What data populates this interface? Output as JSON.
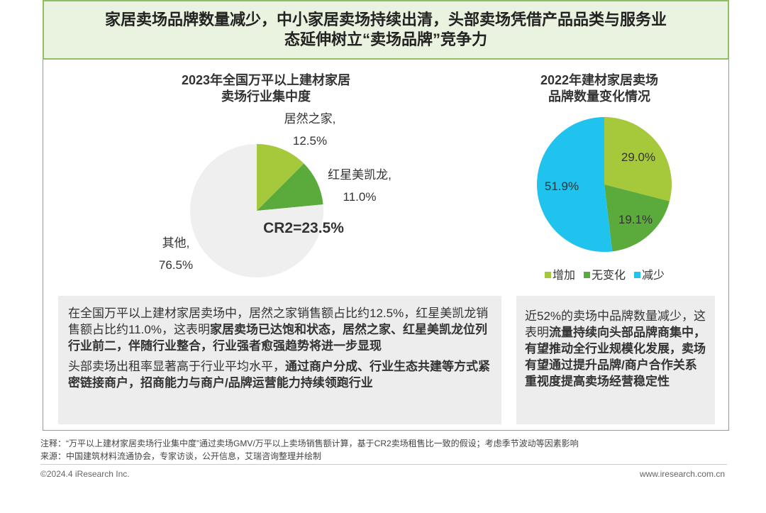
{
  "header": {
    "title": "家居卖场品牌数量减少，中小家居卖场持续出清，头部卖场凭借产品品类与服务业\n态延伸树立“卖场品牌”竞争力"
  },
  "chart_data": [
    {
      "type": "pie",
      "title": "2023年全国万平以上建材家居\n卖场行业集中度",
      "categories": [
        "居然之家,",
        "红星美凯龙,",
        "其他,"
      ],
      "values": [
        12.5,
        11.0,
        76.5
      ],
      "value_labels": [
        "12.5%",
        "11.0%",
        "76.5%"
      ],
      "colors": [
        "#a5c93a",
        "#5aaa3c",
        "#efefef"
      ],
      "label_position": "outside",
      "annotation": "CR2=23.5%"
    },
    {
      "type": "pie",
      "title": "2022年建材家居卖场\n品牌数量变化情况",
      "categories": [
        "增加",
        "无变化",
        "减少"
      ],
      "values": [
        29.0,
        19.1,
        51.9
      ],
      "value_labels": [
        "29.0%",
        "19.1%",
        "51.9%"
      ],
      "colors": [
        "#a5c93a",
        "#5aaa3c",
        "#1fc3ee"
      ],
      "label_position": "inside",
      "legend": "bottom"
    }
  ],
  "boxes": [
    {
      "paragraphs": [
        [
          {
            "text": "在全国万平以上建材家居卖场中，居然之家销售额占比约12.5%，红星美凯龙销售额占比约11.0%，这表明",
            "bold": false
          },
          {
            "text": "家居卖场已达饱和状态，居然之家、红星美凯龙位列行业前二，伴随行业整合，行业强者愈强趋势将进一步显现",
            "bold": true
          }
        ],
        [
          {
            "text": "头部卖场出租率显著高于行业平均水平，",
            "bold": false
          },
          {
            "text": "通过商户分成、行业生态共建等方式紧密链接商户，招商能力与商户/品牌运营能力持续领跑行业",
            "bold": true
          }
        ]
      ]
    },
    {
      "paragraphs": [
        [
          {
            "text": "近52%的卖场中品牌数量减少，这表明",
            "bold": false
          },
          {
            "text": "流量持续向头部品牌商集中，有望推动全行业规模化发展，卖场有望通过提升品牌/商户合作关系重视度提高卖场经营稳定性",
            "bold": true
          }
        ]
      ]
    }
  ],
  "notes": [
    "注释：“万平以上建材家居卖场行业集中度”通过卖场GMV/万平以上卖场销售额计算，基于CR2卖场租售比一致的假设；考虑季节波动等因素影响",
    "来源：中国建筑材料流通协会，专家访谈，公开信息，艾瑞咨询整理并绘制"
  ],
  "footer": {
    "left": "©2024.4 iResearch Inc.",
    "right": "www.iresearch.com.cn"
  }
}
